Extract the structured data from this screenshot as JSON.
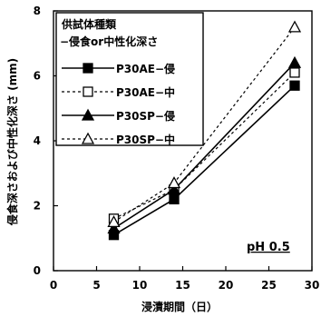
{
  "chart_data": {
    "type": "line",
    "title": "",
    "xlabel": "浸漬期間（日）",
    "ylabel": "侵食深さおよび中性化深さ (mm)",
    "xlim": [
      0,
      30
    ],
    "ylim": [
      0,
      8
    ],
    "xticks": [
      "0",
      "5",
      "10",
      "15",
      "20",
      "25",
      "30"
    ],
    "yticks": [
      "0",
      "2",
      "4",
      "6",
      "8"
    ],
    "grid": false,
    "legend_title": [
      "供試体種類",
      "−侵食or中性化深さ"
    ],
    "legend_position": "top-left",
    "annotation": "pH 0.5",
    "series": [
      {
        "name": "P30AE−侵",
        "x": [
          7,
          14,
          28
        ],
        "y": [
          1.1,
          2.2,
          5.7
        ],
        "line": "solid",
        "marker": "filled-square"
      },
      {
        "name": "P30AE−中",
        "x": [
          7,
          14,
          28
        ],
        "y": [
          1.6,
          2.5,
          6.1
        ],
        "line": "dashed",
        "marker": "open-square"
      },
      {
        "name": "P30SP−侵",
        "x": [
          7,
          14,
          28
        ],
        "y": [
          1.3,
          2.5,
          6.4
        ],
        "line": "solid",
        "marker": "filled-triangle"
      },
      {
        "name": "P30SP−中",
        "x": [
          7,
          14,
          28
        ],
        "y": [
          1.5,
          2.7,
          7.5
        ],
        "line": "dashed",
        "marker": "open-triangle"
      }
    ]
  }
}
